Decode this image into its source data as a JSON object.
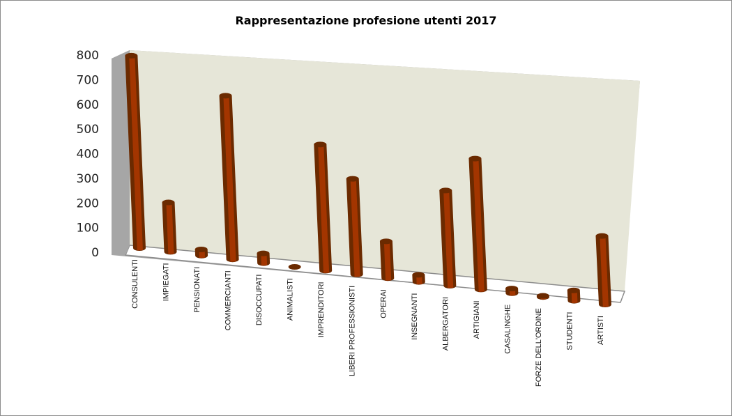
{
  "chart_data": {
    "type": "bar",
    "style": "3d-cylinder",
    "title": "Rappresentazione profesione utenti 2017",
    "xlabel": "",
    "ylabel": "",
    "ylim": [
      0,
      800
    ],
    "yticks": [
      0,
      100,
      200,
      300,
      400,
      500,
      600,
      700,
      800
    ],
    "grid": false,
    "legend": null,
    "categories": [
      "CONSULENTI",
      "IMPIEGATI",
      "PENSIONATI",
      "COMMERCIANTI",
      "DISOCCUPATI",
      "ANIMALISTI",
      "IMPRENDITORI",
      "LIBERI PROFESSIONISTI",
      "OPERAI",
      "INSEGNANTI",
      "ALBERGATORI",
      "ARTIGIANI",
      "CASALINGHE",
      "FORZE DELL'ORDINE",
      "STUDENTI",
      "ARTISTI"
    ],
    "values": [
      775,
      200,
      25,
      670,
      40,
      0,
      525,
      400,
      155,
      30,
      405,
      560,
      20,
      5,
      45,
      300
    ],
    "colors": {
      "bar": "#a33500",
      "bar_dark": "#6b2a00",
      "back_wall": "#e6e6d8",
      "side_wall": "#a6a6a6",
      "floor": "#ffffff"
    }
  }
}
